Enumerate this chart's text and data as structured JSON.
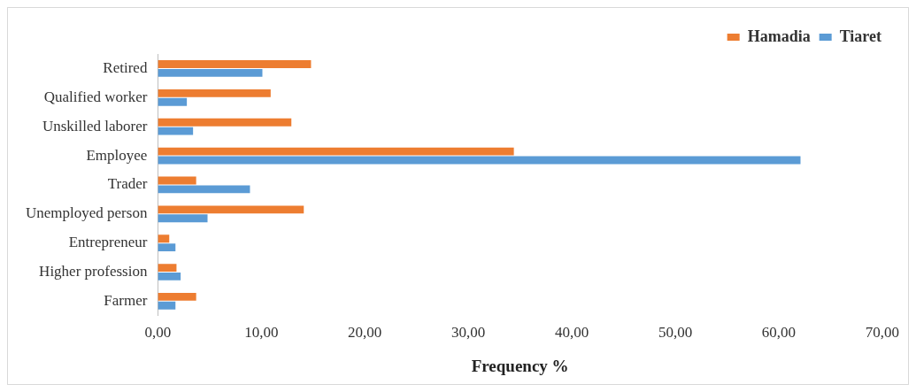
{
  "chart_data": {
    "type": "bar",
    "orientation": "horizontal",
    "xlabel": "Frequency %",
    "categories": [
      "Retired",
      "Qualified worker",
      "Unskilled laborer",
      "Employee",
      "Trader",
      "Unemployed person",
      "Entrepreneur",
      "Higher profession",
      "Farmer"
    ],
    "series": [
      {
        "name": "Hamadia",
        "color": "#ed7d31",
        "values": [
          14.8,
          10.9,
          12.9,
          34.4,
          3.7,
          14.1,
          1.1,
          1.8,
          3.7
        ]
      },
      {
        "name": "Tiaret",
        "color": "#5b9bd5",
        "values": [
          10.1,
          2.8,
          3.4,
          62.1,
          8.9,
          4.8,
          1.7,
          2.2,
          1.7
        ]
      }
    ],
    "xlim": [
      0,
      70
    ],
    "xticks": [
      {
        "value": 0,
        "label": "0,00"
      },
      {
        "value": 10,
        "label": "10,00"
      },
      {
        "value": 20,
        "label": "20,00"
      },
      {
        "value": 30,
        "label": "30,00"
      },
      {
        "value": 40,
        "label": "40,00"
      },
      {
        "value": 50,
        "label": "50,00"
      },
      {
        "value": 60,
        "label": "60,00"
      },
      {
        "value": 70,
        "label": "70,00"
      }
    ],
    "grid": false,
    "legend": "top right"
  }
}
